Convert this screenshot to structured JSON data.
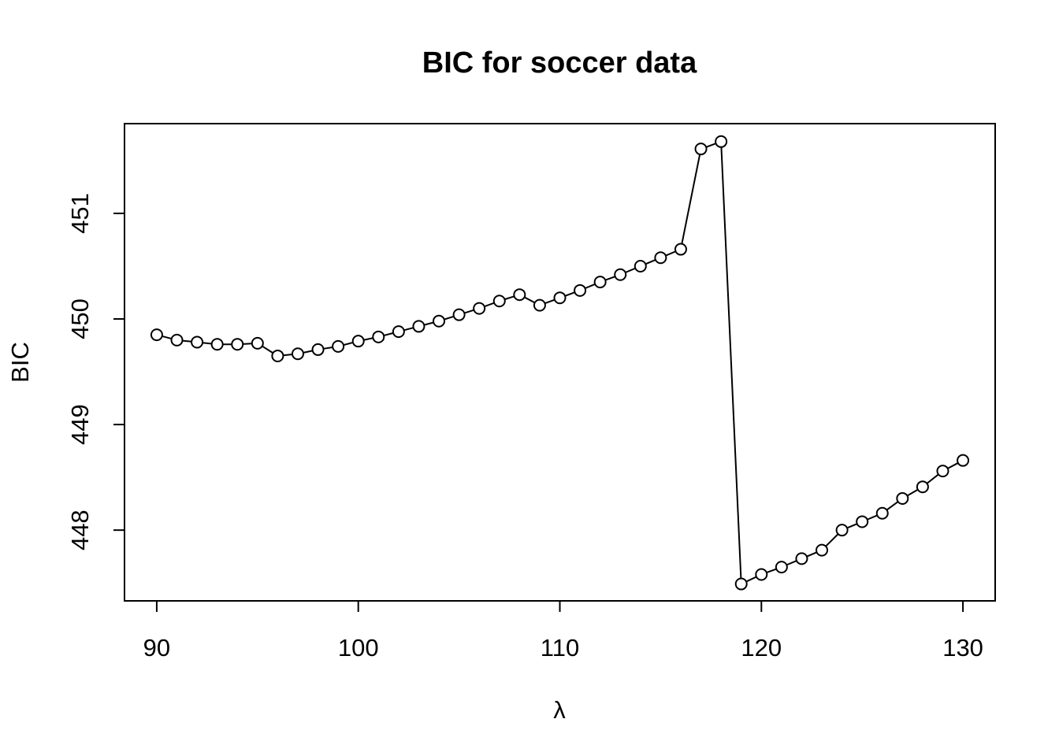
{
  "chart_data": {
    "type": "line",
    "title": "BIC for soccer data",
    "xlabel": "λ",
    "ylabel": "BIC",
    "xlim": [
      88.4,
      131.6
    ],
    "ylim": [
      447.33,
      451.85
    ],
    "xticks": [
      90,
      100,
      110,
      120,
      130
    ],
    "yticks": [
      448,
      449,
      450,
      451
    ],
    "grid": false,
    "legend": "none",
    "markers": "open-circle",
    "series": [
      {
        "x": [
          90,
          91,
          92,
          93,
          94,
          95,
          96,
          97,
          98,
          99,
          100,
          101,
          102,
          103,
          104,
          105,
          106,
          107,
          108,
          109,
          110,
          111,
          112,
          113,
          114,
          115,
          116,
          117,
          118,
          119,
          120,
          121,
          122,
          123,
          124,
          125,
          126,
          127,
          128,
          129,
          130
        ],
        "values": [
          449.85,
          449.8,
          449.78,
          449.76,
          449.76,
          449.77,
          449.65,
          449.67,
          449.71,
          449.74,
          449.79,
          449.83,
          449.88,
          449.93,
          449.98,
          450.04,
          450.1,
          450.17,
          450.23,
          450.13,
          450.2,
          450.27,
          450.35,
          450.42,
          450.5,
          450.58,
          450.66,
          451.61,
          451.68,
          447.49,
          447.58,
          447.65,
          447.73,
          447.81,
          448.0,
          448.08,
          448.16,
          448.3,
          448.41,
          448.56,
          448.66
        ]
      }
    ]
  }
}
